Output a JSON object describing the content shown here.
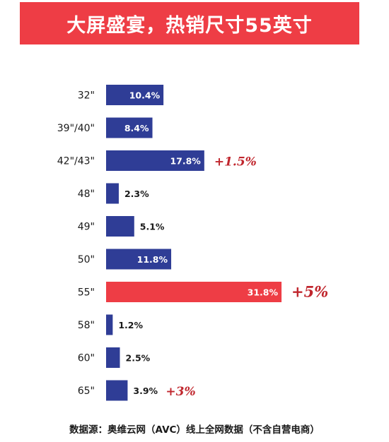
{
  "header": {
    "title": "大屏盛宴，热销尺寸55英寸"
  },
  "chart_data": {
    "type": "bar",
    "orientation": "horizontal",
    "categories": [
      "32\"",
      "39\"/40\"",
      "42\"/43\"",
      "48\"",
      "49\"",
      "50\"",
      "55\"",
      "58\"",
      "60\"",
      "65\""
    ],
    "values": [
      10.4,
      8.4,
      17.8,
      2.3,
      5.1,
      11.8,
      31.8,
      1.2,
      2.5,
      3.9
    ],
    "value_labels": [
      "10.4%",
      "8.4%",
      "17.8%",
      "2.3%",
      "5.1%",
      "11.8%",
      "31.8%",
      "1.2%",
      "2.5%",
      "3.9%"
    ],
    "annotations": [
      {
        "category": "42\"/43\"",
        "text": "+1.5%"
      },
      {
        "category": "55\"",
        "text": "+5%"
      },
      {
        "category": "65\"",
        "text": "+3%"
      }
    ],
    "highlight_category": "55\"",
    "colors": {
      "default": "#2f3d96",
      "highlight": "#ee3d45",
      "annotation": "#c0262d"
    },
    "grid": false,
    "legend": "none"
  },
  "footer": {
    "source": "数据源：奥维云网（AVC）线上全网数据（不含自营电商）"
  }
}
